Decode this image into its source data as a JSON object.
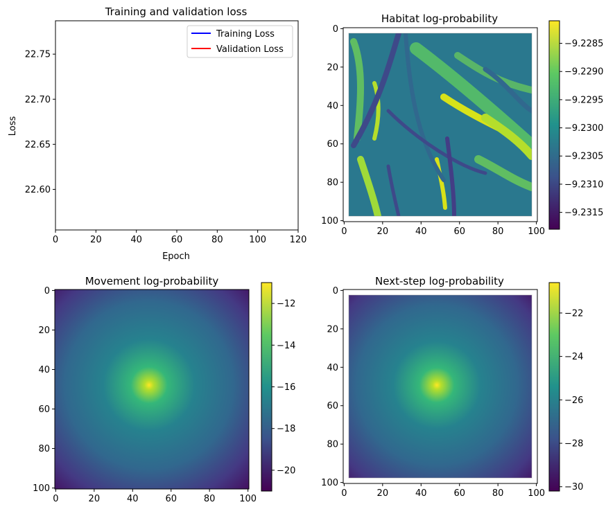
{
  "chart_data": [
    {
      "type": "line",
      "title": "Training and validation loss",
      "xlabel": "Epoch",
      "ylabel": "Loss",
      "xlim": [
        0,
        120
      ],
      "ylim": [
        22.555,
        22.787
      ],
      "xticks": [
        "0",
        "20",
        "40",
        "60",
        "80",
        "100",
        "120"
      ],
      "yticks": [
        "22.60",
        "22.65",
        "22.70",
        "22.75"
      ],
      "ytick_values": [
        22.6,
        22.65,
        22.7,
        22.75
      ],
      "legend": "top-right",
      "series": [
        {
          "name": "Training Loss",
          "color": "#0000ff",
          "x": [],
          "y": []
        },
        {
          "name": "Validation Loss",
          "color": "#ff0000",
          "x": [],
          "y": []
        }
      ]
    },
    {
      "type": "heatmap",
      "title": "Habitat log-probability",
      "xticks": [
        "0",
        "20",
        "40",
        "60",
        "80",
        "100"
      ],
      "yticks": [
        "0",
        "20",
        "40",
        "60",
        "80",
        "100"
      ],
      "xlim": [
        -0.5,
        100.5
      ],
      "ylim": [
        100.5,
        -0.5
      ],
      "data_extent": [
        2.5,
        97.5
      ],
      "colormap": "viridis",
      "colorbar_ticks": [
        "−9.2285",
        "−9.2290",
        "−9.2295",
        "−9.2300",
        "−9.2305",
        "−9.2310",
        "−9.2315"
      ],
      "colorbar_tick_values": [
        -9.2285,
        -9.229,
        -9.2295,
        -9.23,
        -9.2305,
        -9.231,
        -9.2315
      ],
      "vmin": -9.2318,
      "vmax": -9.2281
    },
    {
      "type": "heatmap",
      "title": "Movement log-probability",
      "xticks": [
        "0",
        "20",
        "40",
        "60",
        "80",
        "100"
      ],
      "yticks": [
        "0",
        "20",
        "40",
        "60",
        "80",
        "100"
      ],
      "xlim": [
        -0.5,
        100.5
      ],
      "ylim": [
        100.5,
        -0.5
      ],
      "data_extent": [
        -0.5,
        100.5
      ],
      "center": [
        49,
        49
      ],
      "colormap": "viridis",
      "colorbar_ticks": [
        "−12",
        "−14",
        "−16",
        "−18",
        "−20"
      ],
      "colorbar_tick_values": [
        -12,
        -14,
        -16,
        -18,
        -20
      ],
      "vmin": -21.0,
      "vmax": -11.0
    },
    {
      "type": "heatmap",
      "title": "Next-step log-probability",
      "xticks": [
        "0",
        "20",
        "40",
        "60",
        "80",
        "100"
      ],
      "yticks": [
        "0",
        "20",
        "40",
        "60",
        "80",
        "100"
      ],
      "xlim": [
        -0.5,
        100.5
      ],
      "ylim": [
        100.5,
        -0.5
      ],
      "data_extent": [
        2.5,
        97.5
      ],
      "center": [
        49,
        49
      ],
      "colormap": "viridis",
      "colorbar_ticks": [
        "−22",
        "−24",
        "−26",
        "−28",
        "−30"
      ],
      "colorbar_tick_values": [
        -22,
        -24,
        -26,
        -28,
        -30
      ],
      "vmin": -30.2,
      "vmax": -20.6
    }
  ]
}
